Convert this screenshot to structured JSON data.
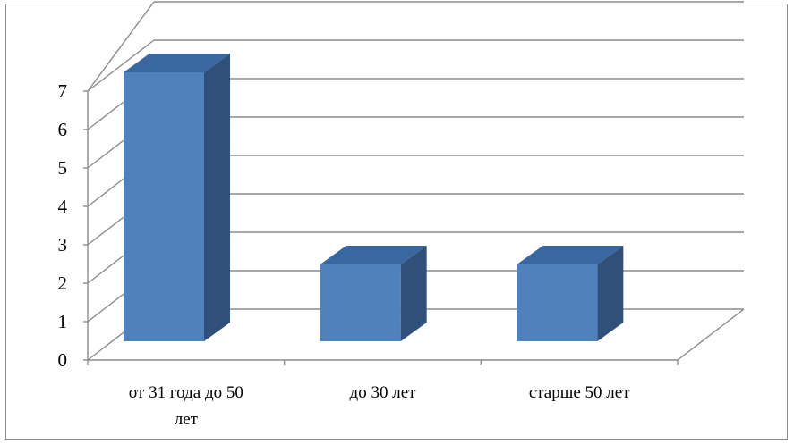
{
  "chart_data": {
    "type": "bar",
    "categories": [
      "от 31 года до 50 лет",
      "до 30 лет",
      "старше 50 лет"
    ],
    "category_lines": [
      [
        "от 31 года до 50",
        "лет"
      ],
      [
        "до 30 лет"
      ],
      [
        "старше 50 лет"
      ]
    ],
    "values": [
      7,
      2,
      2
    ],
    "ylim": [
      0,
      7
    ],
    "yticks": [
      "0",
      "1",
      "2",
      "3",
      "4",
      "5",
      "6",
      "7"
    ],
    "title": "",
    "xlabel": "",
    "ylabel": "",
    "grid": true,
    "legend": "none",
    "style": "3d-column",
    "colors": {
      "bar_front": "#4f81bd",
      "bar_top": "#3a67a0",
      "bar_side": "#2f5078",
      "grid": "#8c8c8c",
      "axis": "#8c8c8c",
      "frame": "#8c8c8c"
    }
  }
}
